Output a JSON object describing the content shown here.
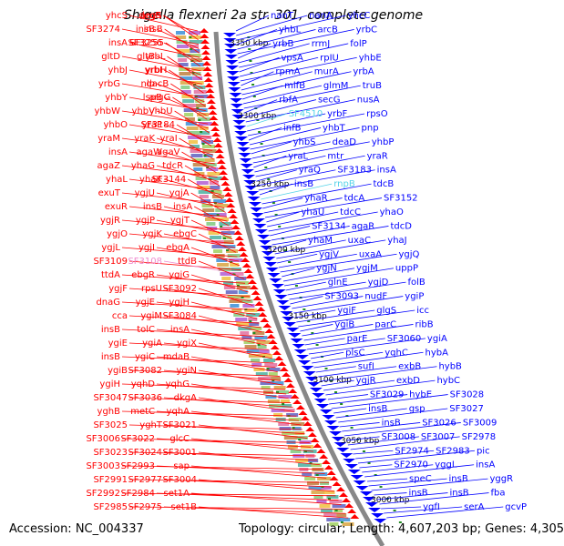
{
  "title": "Shigella flexneri 2a str. 301, complete genome",
  "accession_text": "Accession: NC_004337",
  "stats_text": "Topology: circular; Length: 4,607,203 bp; Genes: 4,305",
  "colors": {
    "forward_strand": "#ff0000",
    "reverse_strand": "#0000ff",
    "highlight_cyan": "#55d3e8",
    "highlight_pink": "#ee88cc",
    "backbone": "#888888",
    "tick_marks": "#228b22"
  },
  "kbp_ticks": [
    "3350 kbp",
    "3300 kbp",
    "3250 kbp",
    "3200 kbp",
    "3150 kbp",
    "3100 kbp",
    "3050 kbp",
    "3000 kbp"
  ],
  "left_labels": [
    "yhcS",
    "argR",
    "degS",
    "SF3274",
    "insB",
    "insB",
    "insA",
    "SF3256",
    "SF3255",
    "gltD",
    "gltB",
    "yrbL",
    "yhbJ",
    "yrbI",
    "yrbH",
    "yrbG",
    "nlp",
    "dacB",
    "yhbY",
    "lspB",
    "argG",
    "yhbW",
    "yhbV",
    "yhbU",
    "yhbO",
    "yraP",
    "SF3184",
    "yraM",
    "yraK",
    "yraI",
    "insA",
    "agaW",
    "agaV",
    "agaZ",
    "yhaG",
    "tdcR",
    "yhaL",
    "yhaK",
    "SF3144",
    "exuT",
    "ygjU",
    "yqjA",
    "exuR",
    "insB",
    "insA",
    "ygjR",
    "ygjP",
    "ygjT",
    "ygjO",
    "ygjK",
    "ebgC",
    "ygjL",
    "ygjI",
    "ebgA",
    "SF3109",
    "SF3108",
    "ttdB",
    "ttdA",
    "ebgR",
    "ygjG",
    "ygjF",
    "rpsU",
    "SF3092",
    "dnaG",
    "ygjE",
    "ygjH",
    "cca",
    "ygiM",
    "SF3084",
    "insB",
    "tolC",
    "insA",
    "ygiE",
    "ygiA",
    "ygiX",
    "insB",
    "ygiC",
    "mdaB",
    "ygiB",
    "SF3082",
    "ygiN",
    "ygiH",
    "yqhD",
    "yqhG",
    "SF3047",
    "SF3036",
    "dkgA",
    "yghB",
    "metC",
    "yqhA",
    "SF3025",
    "yghT",
    "SF3021",
    "SF3006",
    "SF3022",
    "glcC",
    "SF3023",
    "SF3024",
    "SF3001",
    "SF3003",
    "SF2993",
    "sap",
    "SF2991",
    "SF2977",
    "SF3004",
    "SF2992",
    "SF2984",
    "set1A",
    "SF2985",
    "SF2975",
    "set1B"
  ],
  "right_labels": [
    "nanT",
    "nanA",
    "yhcC",
    "yhbL",
    "arcB",
    "yrbC",
    "yrbB",
    "rrmJ",
    "folP",
    "vpsA",
    "rpIU",
    "yhbE",
    "rpmA",
    "murA",
    "yrbA",
    "mlfB",
    "glmM",
    "truB",
    "rbfA",
    "secG",
    "nusA",
    "SF4510",
    "yrbF",
    "rpsO",
    "infB",
    "yhbT",
    "pnp",
    "yhbS",
    "deaD",
    "yhbP",
    "yraL",
    "mtr",
    "yraR",
    "yraQ",
    "SF3183",
    "insA",
    "insB",
    "rnpB",
    "tdcB",
    "yhaR",
    "tdcA",
    "SF3152",
    "yhaU",
    "tdcC",
    "yhaO",
    "SF3134",
    "agaR",
    "tdcD",
    "yhaM",
    "uxaC",
    "yhaJ",
    "ygjV",
    "uxaA",
    "ygjQ",
    "ygjN",
    "ygjM",
    "uppP",
    "glnE",
    "ygjD",
    "folB",
    "SF3093",
    "nudF",
    "ygiP",
    "ygiF",
    "glgS",
    "icc",
    "ygiB",
    "parC",
    "ribB",
    "parE",
    "SF3060",
    "ygiA",
    "plsC",
    "yqhC",
    "hybA",
    "sufI",
    "exbB",
    "hybB",
    "ygjR",
    "exbD",
    "hybC",
    "SF3029",
    "hybE",
    "SF3028",
    "insB",
    "gsp",
    "SF3027",
    "insB",
    "SF3026",
    "SF3009",
    "SF3008",
    "SF3007",
    "SF2978",
    "SF2974",
    "SF2983",
    "pic",
    "SF2970",
    "yggL",
    "insA",
    "speC",
    "insB",
    "yggR",
    "insB",
    "insB",
    "fba",
    "ygfI",
    "serA",
    "gcvP"
  ]
}
